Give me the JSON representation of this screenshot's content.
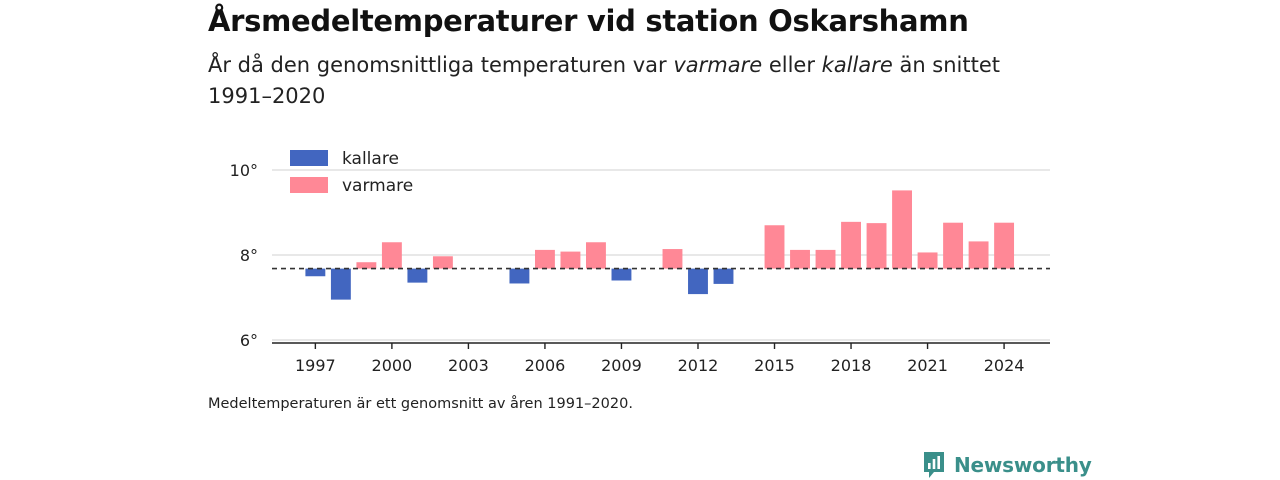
{
  "title": "Årsmedeltemperaturer vid station Oskarshamn",
  "subtitle": {
    "part1": "År då den genomsnittliga temperaturen var ",
    "warm_word": "varmare",
    "part2": " eller ",
    "cold_word": "kallare",
    "part3": " än snittet 1991–2020"
  },
  "footnote": "Medeltemperaturen är ett genomsnitt av åren 1991–2020.",
  "brand": {
    "name": "Newsworthy",
    "color": "#3a8f8a",
    "icon": "newsworthy-chart-icon"
  },
  "colors": {
    "cold": "#4266c0",
    "warm": "#ff8896",
    "grid": "#d9d9d9",
    "axis": "#222222",
    "baseline": "#333333"
  },
  "chart_data": {
    "type": "bar",
    "baseline": 7.68,
    "ylim": [
      6,
      10
    ],
    "yticks": [
      "6°",
      "8°",
      "10°"
    ],
    "ytick_values": [
      6,
      8,
      10
    ],
    "xticks": [
      "1997",
      "2000",
      "2003",
      "2006",
      "2009",
      "2012",
      "2015",
      "2018",
      "2021",
      "2024"
    ],
    "xtick_values": [
      1997,
      2000,
      2003,
      2006,
      2009,
      2012,
      2015,
      2018,
      2021,
      2024
    ],
    "xlim": [
      1995.3,
      2025.8
    ],
    "legend": [
      {
        "name": "kallare",
        "key": "cold"
      },
      {
        "name": "varmare",
        "key": "warm"
      }
    ],
    "legend_position": "top-left",
    "grid": true,
    "x": [
      1997,
      1998,
      1999,
      2000,
      2001,
      2002,
      2005,
      2006,
      2007,
      2008,
      2009,
      2011,
      2012,
      2013,
      2015,
      2016,
      2017,
      2018,
      2019,
      2020,
      2021,
      2022,
      2023,
      2024
    ],
    "values": [
      7.5,
      6.95,
      7.83,
      8.3,
      7.35,
      7.97,
      7.33,
      8.12,
      8.08,
      8.3,
      7.4,
      8.14,
      7.08,
      7.32,
      8.7,
      8.12,
      8.12,
      8.78,
      8.75,
      9.52,
      8.06,
      8.76,
      8.32,
      8.76
    ]
  }
}
